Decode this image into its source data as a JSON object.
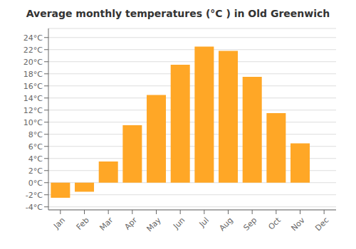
{
  "chart_data": {
    "type": "bar",
    "title": "Average monthly temperatures (°C ) in Old Greenwich",
    "categories": [
      "Jan",
      "Feb",
      "Mar",
      "Apr",
      "May",
      "Jun",
      "Jul",
      "Aug",
      "Sep",
      "Oct",
      "Nov",
      "Dec"
    ],
    "values": [
      -2.5,
      -1.5,
      3.5,
      9.5,
      14.5,
      19.5,
      22.5,
      21.8,
      17.5,
      11.5,
      6.5,
      0.0
    ],
    "color": "#FFA726",
    "ylim": [
      -4.5,
      25.5
    ],
    "yticks": [
      {
        "value": -4,
        "label": "-4°C"
      },
      {
        "value": -2,
        "label": "-2°C"
      },
      {
        "value": 0,
        "label": "0°C"
      },
      {
        "value": 2,
        "label": "2°C"
      },
      {
        "value": 4,
        "label": "4°C"
      },
      {
        "value": 6,
        "label": "6°C"
      },
      {
        "value": 8,
        "label": "8°C"
      },
      {
        "value": 10,
        "label": "10°C"
      },
      {
        "value": 12,
        "label": "12°C"
      },
      {
        "value": 14,
        "label": "14°C"
      },
      {
        "value": 16,
        "label": "16°C"
      },
      {
        "value": 18,
        "label": "18°C"
      },
      {
        "value": 20,
        "label": "20°C"
      },
      {
        "value": 22,
        "label": "22°C"
      },
      {
        "value": 24,
        "label": "24°C"
      }
    ],
    "grid": true
  }
}
